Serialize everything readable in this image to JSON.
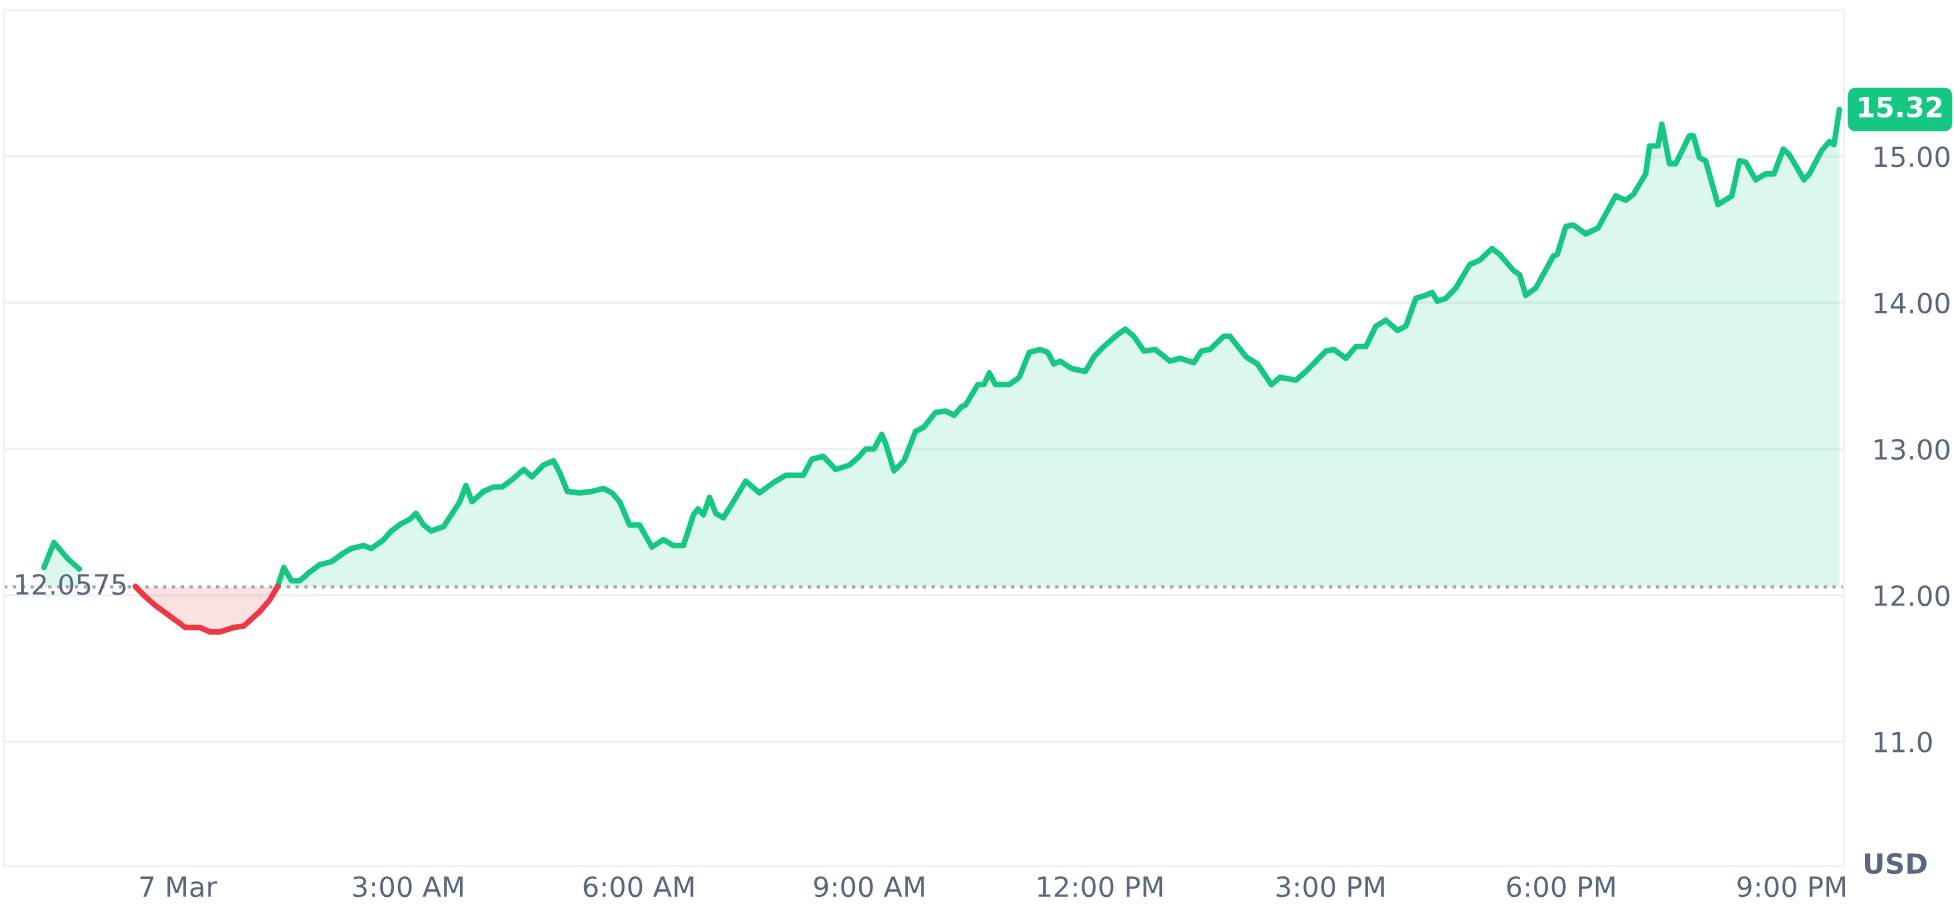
{
  "chart_data": {
    "type": "area",
    "ylabel": "USD",
    "xlim": [
      -2.26,
      21.68
    ],
    "ylim": [
      10.15,
      16.0
    ],
    "xticks": [
      {
        "value": 0,
        "label": "7 Mar"
      },
      {
        "value": 3,
        "label": "3:00 AM"
      },
      {
        "value": 6,
        "label": "6:00 AM"
      },
      {
        "value": 9,
        "label": "9:00 AM"
      },
      {
        "value": 12,
        "label": "12:00 PM"
      },
      {
        "value": 15,
        "label": "3:00 PM"
      },
      {
        "value": 18,
        "label": "6:00 PM"
      },
      {
        "value": 21,
        "label": "9:00 PM"
      }
    ],
    "yticks": [
      {
        "value": 11,
        "label": "11.0"
      },
      {
        "value": 12,
        "label": "12.00"
      },
      {
        "value": 13,
        "label": "13.00"
      },
      {
        "value": 14,
        "label": "14.00"
      },
      {
        "value": 15,
        "label": "15.00"
      }
    ],
    "grid": "y",
    "legend": false,
    "marker": "none",
    "line_style": "solid",
    "ref_lines": [
      {
        "axis": "y",
        "value": 12.0575,
        "label": "12.0575",
        "color": "#a1a7bb",
        "line_style": "dotted"
      }
    ],
    "annotations": [
      {
        "text": "15.32",
        "x": 21.62,
        "y": 15.32
      }
    ],
    "series": [
      {
        "color": "#16c784",
        "x": [
          -1.74,
          -1.61,
          -1.43,
          -1.28,
          -0.6,
          1.3,
          1.38,
          1.48,
          1.59,
          1.72,
          1.85,
          2.0,
          2.16,
          2.26,
          2.42,
          2.52,
          2.68,
          2.78,
          2.91,
          3.02,
          3.1,
          3.2,
          3.3,
          3.46,
          3.56,
          3.67,
          3.75,
          3.83,
          3.98,
          4.11,
          4.22,
          4.35,
          4.5,
          4.61,
          4.76,
          4.89,
          4.97,
          5.07,
          5.23,
          5.39,
          5.54,
          5.65,
          5.75,
          5.88,
          6.01,
          6.17,
          6.32,
          6.45,
          6.58,
          6.71,
          6.77,
          6.84,
          6.92,
          7.0,
          7.1,
          7.23,
          7.39,
          7.57,
          7.75,
          7.91,
          8.14,
          8.25,
          8.4,
          8.56,
          8.74,
          8.87,
          8.95,
          9.06,
          9.16,
          9.21,
          9.32,
          9.45,
          9.6,
          9.71,
          9.86,
          9.99,
          10.1,
          10.2,
          10.25,
          10.41,
          10.49,
          10.56,
          10.64,
          10.82,
          10.95,
          11.08,
          11.22,
          11.32,
          11.4,
          11.48,
          11.63,
          11.81,
          11.92,
          12.05,
          12.2,
          12.33,
          12.44,
          12.57,
          12.72,
          12.91,
          13.04,
          13.22,
          13.32,
          13.43,
          13.61,
          13.69,
          13.9,
          14.05,
          14.23,
          14.34,
          14.55,
          14.68,
          14.94,
          15.04,
          15.2,
          15.33,
          15.46,
          15.59,
          15.72,
          15.87,
          15.98,
          16.11,
          16.24,
          16.32,
          16.39,
          16.5,
          16.63,
          16.81,
          16.94,
          17.1,
          17.2,
          17.38,
          17.46,
          17.54,
          17.67,
          17.9,
          17.95,
          18.06,
          18.16,
          18.32,
          18.48,
          18.71,
          18.84,
          18.94,
          19.1,
          19.15,
          19.26,
          19.31,
          19.41,
          19.49,
          19.67,
          19.72,
          19.8,
          19.88,
          20.04,
          20.22,
          20.32,
          20.4,
          20.53,
          20.66,
          20.77,
          20.89,
          20.97,
          21.16,
          21.23,
          21.39,
          21.49,
          21.55,
          21.62
        ],
        "values": [
          12.19,
          12.36,
          12.25,
          12.18,
          null,
          12.06,
          12.19,
          12.1,
          12.1,
          12.16,
          12.21,
          12.23,
          12.29,
          12.32,
          12.34,
          12.32,
          12.38,
          12.44,
          12.49,
          12.52,
          12.56,
          12.48,
          12.44,
          12.47,
          12.55,
          12.64,
          12.75,
          12.64,
          12.71,
          12.74,
          12.74,
          12.79,
          12.86,
          12.81,
          12.89,
          12.92,
          12.84,
          12.71,
          12.7,
          12.71,
          12.73,
          12.7,
          12.64,
          12.48,
          12.48,
          12.33,
          12.38,
          12.34,
          12.34,
          12.55,
          12.59,
          12.55,
          12.67,
          12.56,
          12.53,
          12.64,
          12.78,
          12.7,
          12.77,
          12.82,
          12.82,
          12.93,
          12.95,
          12.86,
          12.89,
          12.95,
          13.0,
          13.0,
          13.1,
          13.04,
          12.85,
          12.92,
          13.12,
          13.15,
          13.25,
          13.26,
          13.23,
          13.29,
          13.3,
          13.44,
          13.44,
          13.52,
          13.44,
          13.44,
          13.49,
          13.66,
          13.68,
          13.66,
          13.58,
          13.6,
          13.55,
          13.53,
          13.63,
          13.7,
          13.77,
          13.82,
          13.77,
          13.67,
          13.68,
          13.6,
          13.62,
          13.59,
          13.67,
          13.68,
          13.77,
          13.77,
          13.63,
          13.58,
          13.44,
          13.49,
          13.47,
          13.53,
          13.67,
          13.68,
          13.62,
          13.7,
          13.7,
          13.84,
          13.88,
          13.81,
          13.84,
          14.03,
          14.05,
          14.07,
          14.01,
          14.03,
          14.1,
          14.26,
          14.29,
          14.37,
          14.33,
          14.22,
          14.19,
          14.05,
          14.1,
          14.32,
          14.33,
          14.52,
          14.53,
          14.47,
          14.51,
          14.73,
          14.7,
          14.74,
          14.88,
          15.07,
          15.07,
          15.22,
          14.95,
          14.95,
          15.14,
          15.14,
          14.99,
          14.97,
          14.67,
          14.73,
          14.97,
          14.96,
          14.84,
          14.88,
          14.88,
          15.05,
          15.01,
          14.84,
          14.88,
          15.04,
          15.1,
          15.08,
          15.32
        ]
      },
      {
        "color": "#ea3943",
        "x": [
          -0.55,
          -0.44,
          -0.29,
          -0.16,
          0.1,
          0.29,
          0.42,
          0.55,
          0.73,
          0.86,
          1.07,
          1.2,
          1.3
        ],
        "values": [
          12.06,
          12.0,
          11.93,
          11.88,
          11.78,
          11.78,
          11.75,
          11.75,
          11.78,
          11.79,
          11.89,
          11.97,
          12.06
        ]
      }
    ]
  }
}
